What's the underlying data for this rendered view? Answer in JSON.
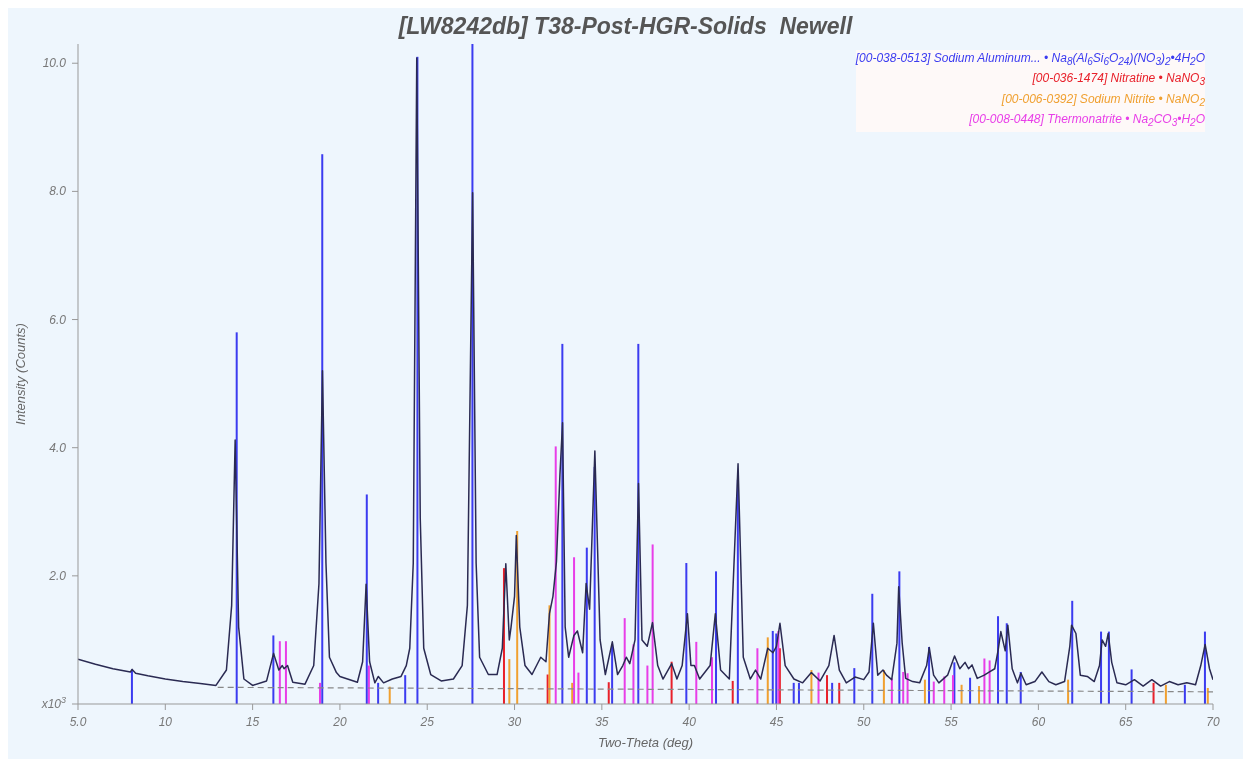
{
  "chart_data": {
    "type": "line",
    "title": "[LW8242db] T38-Post-HGR-Solids  Newell",
    "xlabel": "Two-Theta (deg)",
    "ylabel": "Intensity (Counts)",
    "xlim": [
      5,
      70
    ],
    "xticks": [
      {
        "value": 5,
        "label": "5.0"
      },
      10,
      15,
      20,
      25,
      30,
      35,
      40,
      45,
      50,
      55,
      60,
      65,
      70
    ],
    "ylim": [
      0,
      10.3
    ],
    "yticks": [
      {
        "value": 0,
        "label": "x10$^{3}$"
      },
      {
        "value": 2,
        "label": "2.0"
      },
      {
        "value": 4,
        "label": "4.0"
      },
      {
        "value": 6,
        "label": "6.0"
      },
      {
        "value": 8,
        "label": "8.0"
      },
      {
        "value": 10,
        "label": "10.0"
      }
    ],
    "legend": "top right",
    "series": [
      {
        "color": "#2a2a52",
        "x": [
          5.0,
          6.0,
          7.0,
          8.0,
          8.1,
          8.3,
          9.0,
          10,
          11,
          12,
          12.9,
          13.5,
          13.8,
          14.0,
          14.2,
          14.5,
          15.0,
          15.8,
          16.2,
          16.5,
          16.7,
          16.8,
          17.0,
          17.3,
          18.0,
          18.5,
          18.8,
          19.0,
          19.2,
          19.4,
          19.8,
          20.0,
          21.0,
          21.3,
          21.5,
          21.7,
          22.0,
          22.2,
          22.5,
          23.0,
          23.5,
          23.8,
          24.0,
          24.2,
          24.4,
          24.6,
          24.8,
          25.2,
          25.8,
          26.5,
          27.0,
          27.3,
          27.6,
          27.8,
          28.0,
          28.5,
          29.0,
          29.3,
          29.5,
          29.7,
          29.8,
          30.0,
          30.1,
          30.3,
          30.6,
          31.0,
          31.5,
          31.8,
          32.0,
          32.2,
          32.4,
          32.6,
          32.75,
          32.9,
          33.1,
          33.4,
          33.6,
          33.9,
          34.1,
          34.3,
          34.6,
          34.9,
          35.2,
          35.6,
          35.9,
          36.2,
          36.4,
          36.6,
          36.9,
          37.1,
          37.3,
          37.6,
          37.9,
          38.2,
          38.5,
          39.0,
          39.3,
          39.6,
          39.9,
          40.1,
          40.3,
          40.6,
          41.2,
          41.5,
          41.8,
          42.3,
          42.8,
          43.1,
          43.5,
          43.8,
          44.1,
          44.5,
          44.8,
          45.0,
          45.2,
          45.5,
          46.0,
          46.5,
          47.0,
          47.5,
          48.0,
          48.3,
          48.6,
          49.0,
          49.5,
          50.0,
          50.3,
          50.55,
          50.8,
          51.1,
          51.3,
          51.6,
          51.9,
          52.0,
          52.2,
          52.4,
          52.8,
          53.2,
          53.6,
          53.75,
          54.0,
          54.3,
          54.8,
          55.2,
          55.5,
          55.8,
          56.0,
          56.2,
          56.5,
          56.9,
          57.2,
          57.5,
          57.7,
          57.85,
          58.1,
          58.25,
          58.5,
          58.8,
          59.0,
          59.3,
          59.8,
          60.2,
          60.6,
          61.0,
          61.5,
          61.8,
          61.9,
          62.15,
          62.4,
          62.8,
          63.2,
          63.5,
          63.65,
          63.85,
          64.0,
          64.2,
          64.5,
          65.0,
          65.5,
          66.0,
          66.5,
          67.0,
          67.5,
          68.0,
          68.5,
          69.0,
          69.3,
          69.55,
          69.8,
          70.0
        ],
        "values": [
          0.7,
          0.62,
          0.55,
          0.5,
          0.54,
          0.48,
          0.44,
          0.39,
          0.35,
          0.32,
          0.29,
          0.53,
          1.54,
          4.12,
          1.2,
          0.39,
          0.29,
          0.36,
          0.79,
          0.53,
          0.6,
          0.55,
          0.6,
          0.34,
          0.31,
          0.6,
          1.88,
          5.2,
          2.2,
          0.73,
          0.49,
          0.43,
          0.34,
          0.66,
          1.87,
          0.66,
          0.33,
          0.43,
          0.33,
          0.39,
          0.43,
          0.6,
          0.87,
          2.2,
          10.08,
          2.9,
          0.87,
          0.46,
          0.36,
          0.39,
          0.6,
          1.54,
          7.98,
          2.2,
          0.73,
          0.46,
          0.46,
          0.87,
          2.19,
          1.0,
          1.2,
          1.68,
          2.63,
          1.2,
          0.6,
          0.46,
          0.73,
          0.66,
          1.41,
          1.68,
          2.22,
          3.58,
          4.39,
          1.2,
          0.73,
          1.07,
          1.14,
          0.8,
          1.88,
          1.48,
          3.95,
          1.0,
          0.46,
          0.97,
          0.46,
          0.6,
          0.73,
          0.63,
          1.0,
          3.44,
          1.0,
          0.9,
          1.27,
          0.6,
          0.39,
          0.63,
          0.39,
          0.6,
          1.41,
          0.6,
          0.6,
          0.39,
          0.6,
          1.41,
          0.53,
          0.39,
          3.75,
          0.73,
          0.39,
          0.53,
          0.39,
          0.87,
          0.8,
          0.9,
          1.26,
          0.6,
          0.39,
          0.33,
          0.49,
          0.36,
          0.6,
          1.07,
          0.53,
          0.33,
          0.42,
          0.38,
          0.5,
          1.26,
          0.45,
          0.53,
          0.45,
          0.38,
          0.95,
          1.83,
          0.95,
          0.4,
          0.35,
          0.33,
          0.6,
          0.88,
          0.45,
          0.33,
          0.45,
          0.75,
          0.55,
          0.65,
          0.55,
          0.61,
          0.4,
          0.45,
          0.5,
          0.55,
          0.85,
          1.13,
          0.83,
          1.23,
          0.55,
          0.33,
          0.48,
          0.3,
          0.35,
          0.5,
          0.35,
          0.3,
          0.35,
          0.9,
          1.23,
          1.1,
          0.45,
          0.43,
          0.35,
          0.6,
          1.0,
          0.9,
          1.1,
          0.65,
          0.33,
          0.3,
          0.38,
          0.28,
          0.38,
          0.28,
          0.35,
          0.3,
          0.33,
          0.3,
          0.6,
          0.93,
          0.55,
          0.38
        ]
      },
      {
        "type": "line",
        "line_style": "dashed",
        "color": "#888888",
        "x": [
          13,
          70
        ],
        "values": [
          0.26,
          0.19
        ]
      },
      {
        "type": "bar",
        "name": "[00-038-0513] Sodium Aluminum... • Na$_{8}$(Al$_{6}$Si$_{6}$O$_{24}$)(NO$_{3}$)$_{2}$•4H$_{2}$O",
        "color": "#3b3bf0",
        "x": [
          8.1,
          14.1,
          16.2,
          19.0,
          21.55,
          22.2,
          23.75,
          24.45,
          27.6,
          32.75,
          34.15,
          34.6,
          35.6,
          37.1,
          39.85,
          41.55,
          42.8,
          44.8,
          45.0,
          46.0,
          46.3,
          48.2,
          49.47,
          50.5,
          52.05,
          53.75,
          55.2,
          56.1,
          57.7,
          58.2,
          59.0,
          61.95,
          63.6,
          64.05,
          65.35,
          68.4,
          69.55
        ],
        "values": [
          0.54,
          5.8,
          1.07,
          8.58,
          3.27,
          0.33,
          0.45,
          10.1,
          10.3,
          5.62,
          2.44,
          3.7,
          0.93,
          5.62,
          2.2,
          2.07,
          3.5,
          1.14,
          1.1,
          0.33,
          0.33,
          0.33,
          0.56,
          1.72,
          2.07,
          0.89,
          0.65,
          0.41,
          1.37,
          1.26,
          0.5,
          1.61,
          1.13,
          1.13,
          0.54,
          0.3,
          1.13
        ]
      },
      {
        "type": "bar",
        "name": "[00-036-1474] Nitratine • NaNO$_{3}$",
        "color": "#e8202a",
        "x": [
          29.4,
          31.9,
          35.4,
          39.0,
          42.5,
          45.2,
          47.9,
          48.6,
          66.6
        ],
        "values": [
          2.12,
          0.46,
          0.34,
          0.66,
          0.36,
          0.87,
          0.45,
          0.33,
          0.33
        ]
      },
      {
        "type": "bar",
        "name": "[00-006-0392] Sodium Nitrite • NaNO$_{2}$",
        "color": "#f0a030",
        "x": [
          22.85,
          29.7,
          30.15,
          32.0,
          33.3,
          44.5,
          47.0,
          51.15,
          53.5,
          55.6,
          56.6,
          61.7,
          67.3,
          69.7
        ],
        "values": [
          0.27,
          0.7,
          2.7,
          1.54,
          0.33,
          1.04,
          0.53,
          0.53,
          0.38,
          0.3,
          0.28,
          0.38,
          0.3,
          0.25
        ]
      },
      {
        "type": "bar",
        "name": "[00-008-0448] Thermonatrite • Na$_{2}$CO$_{3}$•H$_{2}$O",
        "color": "#e83ee8",
        "x": [
          16.55,
          16.9,
          18.85,
          21.65,
          32.35,
          33.4,
          33.65,
          36.3,
          36.8,
          37.6,
          37.9,
          40.4,
          41.3,
          43.9,
          45.1,
          47.4,
          51.6,
          52.25,
          52.5,
          54.0,
          54.6,
          55.1,
          56.9,
          57.2
        ],
        "values": [
          0.98,
          0.98,
          0.33,
          0.6,
          4.02,
          2.29,
          0.49,
          1.34,
          0.93,
          0.6,
          2.49,
          0.97,
          0.73,
          0.87,
          1.14,
          0.49,
          0.4,
          0.5,
          0.48,
          0.35,
          0.43,
          0.45,
          0.71,
          0.68
        ]
      }
    ]
  }
}
